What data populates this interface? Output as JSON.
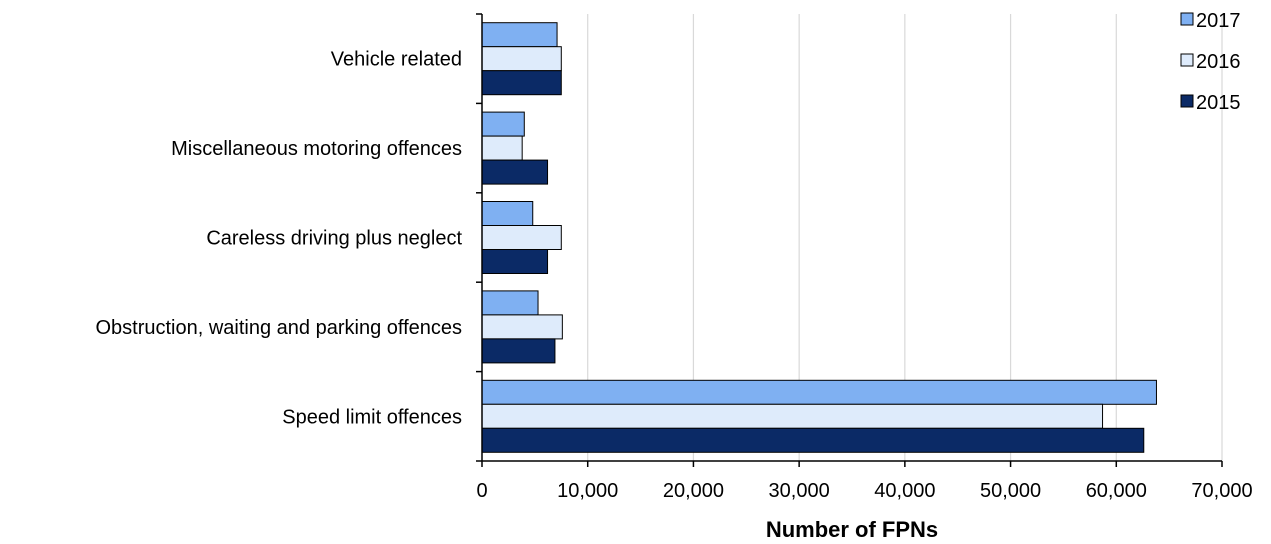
{
  "chart_data": {
    "type": "bar",
    "orientation": "horizontal",
    "categories": [
      "Vehicle related",
      "Miscellaneous motoring offences",
      "Careless driving plus neglect",
      "Obstruction, waiting and parking offences",
      "Speed limit offences"
    ],
    "series": [
      {
        "name": "2017",
        "color": "#7fb0f2",
        "values": [
          7100,
          4000,
          4800,
          5300,
          63800
        ]
      },
      {
        "name": "2016",
        "color": "#deebfb",
        "values": [
          7500,
          3800,
          7500,
          7600,
          58700
        ]
      },
      {
        "name": "2015",
        "color": "#0b2a66",
        "values": [
          7500,
          6200,
          6200,
          6900,
          62600
        ]
      }
    ],
    "xlabel": "Number of FPNs",
    "xlim": [
      0,
      70000
    ],
    "xticks": [
      0,
      10000,
      20000,
      30000,
      40000,
      50000,
      60000,
      70000
    ],
    "xtick_labels": [
      "0",
      "10,000",
      "20,000",
      "30,000",
      "40,000",
      "50,000",
      "60,000",
      "70,000"
    ],
    "grid": "vertical",
    "legend_position": "top-right"
  }
}
